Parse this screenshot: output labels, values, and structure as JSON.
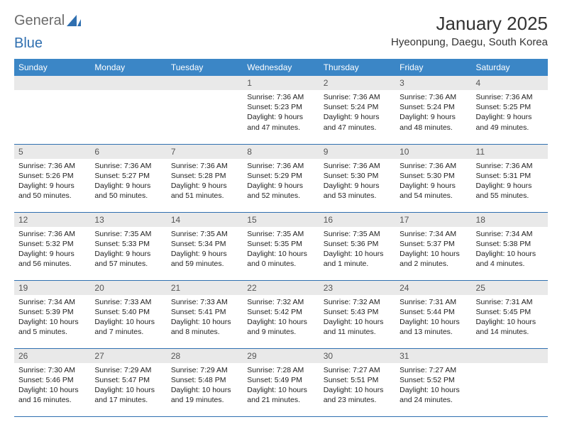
{
  "brand": {
    "part1": "General",
    "part2": "Blue"
  },
  "title": "January 2025",
  "location": "Hyeonpung, Daegu, South Korea",
  "colors": {
    "header_bg": "#3b86c6",
    "header_text": "#ffffff",
    "daynum_bg": "#e9e9e9",
    "border": "#2f6fb0",
    "brand_gray": "#6b6b6b",
    "brand_blue": "#2f6fb0"
  },
  "weekdays": [
    "Sunday",
    "Monday",
    "Tuesday",
    "Wednesday",
    "Thursday",
    "Friday",
    "Saturday"
  ],
  "weeks": [
    [
      null,
      null,
      null,
      {
        "day": "1",
        "sunrise": "7:36 AM",
        "sunset": "5:23 PM",
        "daylight": "9 hours and 47 minutes."
      },
      {
        "day": "2",
        "sunrise": "7:36 AM",
        "sunset": "5:24 PM",
        "daylight": "9 hours and 47 minutes."
      },
      {
        "day": "3",
        "sunrise": "7:36 AM",
        "sunset": "5:24 PM",
        "daylight": "9 hours and 48 minutes."
      },
      {
        "day": "4",
        "sunrise": "7:36 AM",
        "sunset": "5:25 PM",
        "daylight": "9 hours and 49 minutes."
      }
    ],
    [
      {
        "day": "5",
        "sunrise": "7:36 AM",
        "sunset": "5:26 PM",
        "daylight": "9 hours and 50 minutes."
      },
      {
        "day": "6",
        "sunrise": "7:36 AM",
        "sunset": "5:27 PM",
        "daylight": "9 hours and 50 minutes."
      },
      {
        "day": "7",
        "sunrise": "7:36 AM",
        "sunset": "5:28 PM",
        "daylight": "9 hours and 51 minutes."
      },
      {
        "day": "8",
        "sunrise": "7:36 AM",
        "sunset": "5:29 PM",
        "daylight": "9 hours and 52 minutes."
      },
      {
        "day": "9",
        "sunrise": "7:36 AM",
        "sunset": "5:30 PM",
        "daylight": "9 hours and 53 minutes."
      },
      {
        "day": "10",
        "sunrise": "7:36 AM",
        "sunset": "5:30 PM",
        "daylight": "9 hours and 54 minutes."
      },
      {
        "day": "11",
        "sunrise": "7:36 AM",
        "sunset": "5:31 PM",
        "daylight": "9 hours and 55 minutes."
      }
    ],
    [
      {
        "day": "12",
        "sunrise": "7:36 AM",
        "sunset": "5:32 PM",
        "daylight": "9 hours and 56 minutes."
      },
      {
        "day": "13",
        "sunrise": "7:35 AM",
        "sunset": "5:33 PM",
        "daylight": "9 hours and 57 minutes."
      },
      {
        "day": "14",
        "sunrise": "7:35 AM",
        "sunset": "5:34 PM",
        "daylight": "9 hours and 59 minutes."
      },
      {
        "day": "15",
        "sunrise": "7:35 AM",
        "sunset": "5:35 PM",
        "daylight": "10 hours and 0 minutes."
      },
      {
        "day": "16",
        "sunrise": "7:35 AM",
        "sunset": "5:36 PM",
        "daylight": "10 hours and 1 minute."
      },
      {
        "day": "17",
        "sunrise": "7:34 AM",
        "sunset": "5:37 PM",
        "daylight": "10 hours and 2 minutes."
      },
      {
        "day": "18",
        "sunrise": "7:34 AM",
        "sunset": "5:38 PM",
        "daylight": "10 hours and 4 minutes."
      }
    ],
    [
      {
        "day": "19",
        "sunrise": "7:34 AM",
        "sunset": "5:39 PM",
        "daylight": "10 hours and 5 minutes."
      },
      {
        "day": "20",
        "sunrise": "7:33 AM",
        "sunset": "5:40 PM",
        "daylight": "10 hours and 7 minutes."
      },
      {
        "day": "21",
        "sunrise": "7:33 AM",
        "sunset": "5:41 PM",
        "daylight": "10 hours and 8 minutes."
      },
      {
        "day": "22",
        "sunrise": "7:32 AM",
        "sunset": "5:42 PM",
        "daylight": "10 hours and 9 minutes."
      },
      {
        "day": "23",
        "sunrise": "7:32 AM",
        "sunset": "5:43 PM",
        "daylight": "10 hours and 11 minutes."
      },
      {
        "day": "24",
        "sunrise": "7:31 AM",
        "sunset": "5:44 PM",
        "daylight": "10 hours and 13 minutes."
      },
      {
        "day": "25",
        "sunrise": "7:31 AM",
        "sunset": "5:45 PM",
        "daylight": "10 hours and 14 minutes."
      }
    ],
    [
      {
        "day": "26",
        "sunrise": "7:30 AM",
        "sunset": "5:46 PM",
        "daylight": "10 hours and 16 minutes."
      },
      {
        "day": "27",
        "sunrise": "7:29 AM",
        "sunset": "5:47 PM",
        "daylight": "10 hours and 17 minutes."
      },
      {
        "day": "28",
        "sunrise": "7:29 AM",
        "sunset": "5:48 PM",
        "daylight": "10 hours and 19 minutes."
      },
      {
        "day": "29",
        "sunrise": "7:28 AM",
        "sunset": "5:49 PM",
        "daylight": "10 hours and 21 minutes."
      },
      {
        "day": "30",
        "sunrise": "7:27 AM",
        "sunset": "5:51 PM",
        "daylight": "10 hours and 23 minutes."
      },
      {
        "day": "31",
        "sunrise": "7:27 AM",
        "sunset": "5:52 PM",
        "daylight": "10 hours and 24 minutes."
      },
      null
    ]
  ],
  "labels": {
    "sunrise": "Sunrise:",
    "sunset": "Sunset:",
    "daylight": "Daylight:"
  }
}
